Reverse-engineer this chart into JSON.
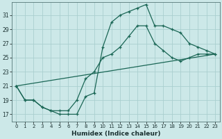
{
  "xlabel": "Humidex (Indice chaleur)",
  "background_color": "#cce8e8",
  "grid_color": "#aacfcf",
  "line_color": "#1a6655",
  "xlim": [
    -0.5,
    23.5
  ],
  "ylim": [
    16.0,
    32.8
  ],
  "xticks": [
    0,
    1,
    2,
    3,
    4,
    5,
    6,
    7,
    8,
    9,
    10,
    11,
    12,
    13,
    14,
    15,
    16,
    17,
    18,
    19,
    20,
    21,
    22,
    23
  ],
  "yticks": [
    17,
    19,
    21,
    23,
    25,
    27,
    29,
    31
  ],
  "line_straight": {
    "x": [
      0,
      23
    ],
    "y": [
      21,
      25.5
    ],
    "marker": false
  },
  "line_sharp": {
    "x": [
      0,
      1,
      2,
      3,
      4,
      5,
      6,
      7,
      8,
      9,
      10,
      11,
      12,
      13,
      14,
      15,
      16,
      17,
      18,
      19,
      20,
      21,
      22,
      23
    ],
    "y": [
      21,
      19,
      19,
      18,
      17.5,
      17,
      17,
      17,
      19.5,
      20,
      26.5,
      30,
      31,
      31.5,
      32,
      32.5,
      29.5,
      29.5,
      29,
      28.5,
      27,
      26.5,
      26,
      25.5
    ],
    "marker": true
  },
  "line_mid": {
    "x": [
      0,
      1,
      2,
      3,
      4,
      5,
      6,
      7,
      8,
      9,
      10,
      11,
      12,
      13,
      14,
      15,
      16,
      17,
      18,
      19,
      20,
      21,
      22,
      23
    ],
    "y": [
      21,
      19,
      19,
      18,
      17.5,
      17.5,
      17.5,
      19,
      22,
      23,
      25,
      25.5,
      26.5,
      28,
      29.5,
      29.5,
      27,
      26,
      25,
      24.5,
      25,
      25.5,
      25.5,
      25.5
    ],
    "marker": true
  }
}
